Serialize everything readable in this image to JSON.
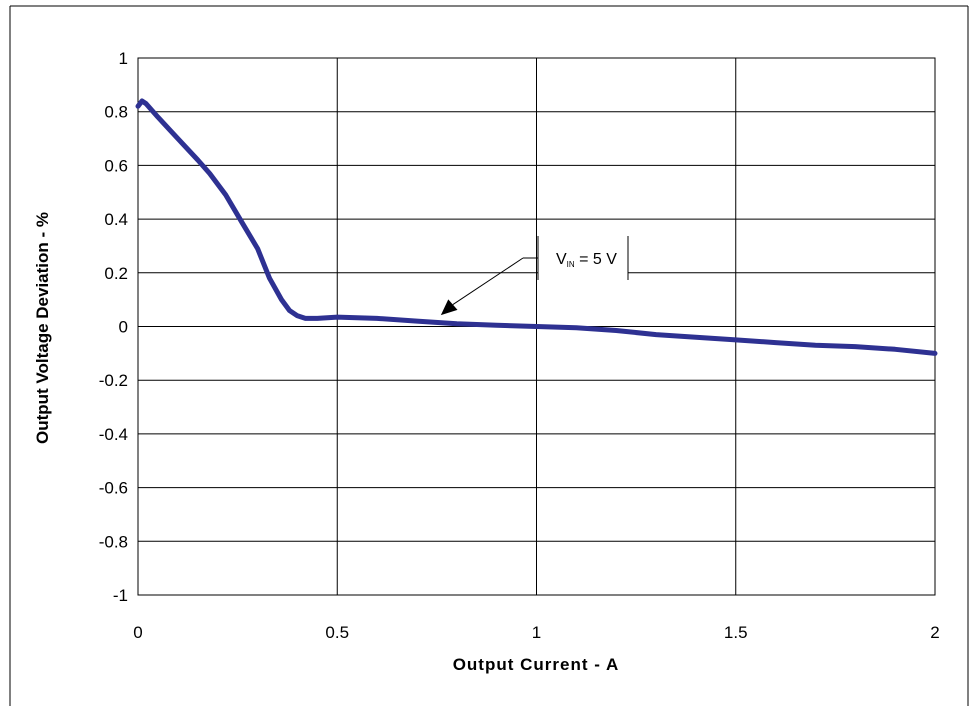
{
  "chart_data": {
    "type": "line",
    "title": "",
    "xlabel": "Output Current - A",
    "ylabel": "Output Voltage Deviation - %",
    "xlim": [
      0,
      2
    ],
    "ylim": [
      -1,
      1
    ],
    "x_ticks": [
      "0",
      "0.5",
      "1",
      "1.5",
      "2"
    ],
    "y_ticks": [
      "1",
      "0.8",
      "0.6",
      "0.4",
      "0.2",
      "0",
      "-0.2",
      "-0.4",
      "-0.6",
      "-0.8",
      "-1"
    ],
    "grid": true,
    "annotation": {
      "text_main": "V",
      "text_sub": "IN",
      "text_rest": " = 5 V",
      "points_to": [
        0.76,
        0.02
      ]
    },
    "series": [
      {
        "color": "#2e3192",
        "x": [
          0.0,
          0.01,
          0.02,
          0.05,
          0.1,
          0.15,
          0.18,
          0.22,
          0.26,
          0.3,
          0.33,
          0.36,
          0.38,
          0.4,
          0.42,
          0.45,
          0.5,
          0.6,
          0.7,
          0.8,
          0.9,
          1.0,
          1.1,
          1.2,
          1.3,
          1.4,
          1.5,
          1.6,
          1.7,
          1.8,
          1.9,
          2.0
        ],
        "y": [
          0.82,
          0.84,
          0.83,
          0.78,
          0.7,
          0.62,
          0.57,
          0.49,
          0.39,
          0.29,
          0.18,
          0.1,
          0.06,
          0.04,
          0.03,
          0.03,
          0.035,
          0.03,
          0.02,
          0.01,
          0.005,
          0.0,
          -0.005,
          -0.015,
          -0.03,
          -0.04,
          -0.05,
          -0.06,
          -0.07,
          -0.075,
          -0.085,
          -0.1
        ]
      }
    ]
  }
}
